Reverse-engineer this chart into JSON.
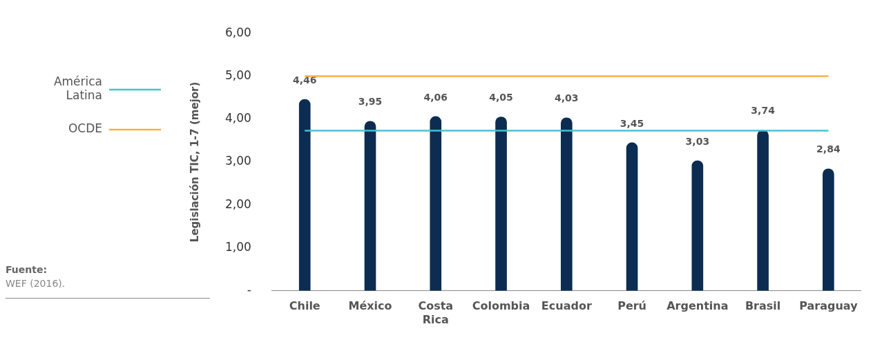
{
  "chart_data": {
    "type": "bar",
    "ylabel": "Legislación TIC, 1-7 (mejor)",
    "categories": [
      "Chile",
      "México",
      "Costa Rica",
      "Colombia",
      "Ecuador",
      "Perú",
      "Argentina",
      "Brasil",
      "Paraguay"
    ],
    "values": [
      4.46,
      3.95,
      4.06,
      4.05,
      4.03,
      3.45,
      3.03,
      3.74,
      2.84
    ],
    "value_labels": [
      "4,46",
      "3,95",
      "4,06",
      "4,05",
      "4,03",
      "3,45",
      "3,03",
      "3,74",
      "2,84"
    ],
    "color": "#0c2d51",
    "ylim": [
      0,
      6
    ],
    "yticks": [
      {
        "value": 0,
        "label": "-"
      },
      {
        "value": 1,
        "label": "1,00"
      },
      {
        "value": 2,
        "label": "2,00"
      },
      {
        "value": 3,
        "label": "3,00"
      },
      {
        "value": 4,
        "label": "4,00"
      },
      {
        "value": 5,
        "label": "5,00"
      },
      {
        "value": 6,
        "label": "6,00"
      }
    ],
    "ref_lines": [
      {
        "axis": "y",
        "value": 3.73,
        "label": "América Latina",
        "color": "#45c3d4"
      },
      {
        "axis": "y",
        "value": 5,
        "label": "OCDE",
        "color": "#fbb040"
      }
    ],
    "legend": "left",
    "grid": false,
    "annotations": [
      "Fuente:",
      "WEF (2016)."
    ]
  }
}
